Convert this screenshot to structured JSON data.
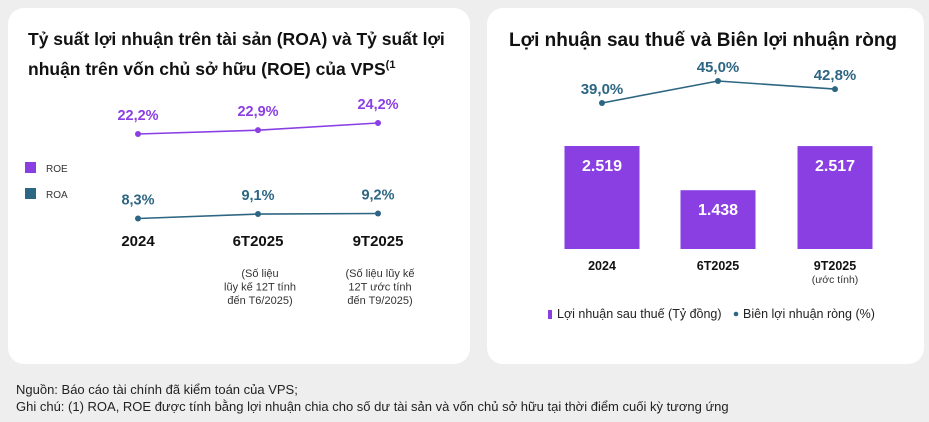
{
  "left_card": {
    "title_main": "Tỷ suất lợi nhuận trên tài sản (ROA) và Tỷ suất lợi nhuận trên vốn chủ sở hữu (ROE) của VPS",
    "title_sup": "(1"
  },
  "right_card": {
    "title": "Lợi nhuận sau thuế và Biên lợi nhuận ròng"
  },
  "footer": {
    "source": "Nguồn: Báo cáo tài chính đã kiểm toán của VPS;",
    "note": "Ghi chú: (1) ROA, ROE được tính bằng lợi nhuận chia cho số dư tài sản và vốn chủ sở hữu tại thời điểm cuối kỳ tương ứng"
  },
  "colors": {
    "roe": "#8a3fe3",
    "roa": "#2d6682",
    "bar": "#8a3fe3",
    "margin_line": "#2d6682",
    "text_dark": "#111111"
  },
  "chart_data": [
    {
      "type": "line",
      "categories": [
        "2024",
        "6T2025",
        "9T2025"
      ],
      "category_notes": [
        "",
        [
          "(Số liệu",
          "lũy kế 12T tính",
          "đến T6/2025)"
        ],
        [
          "(Số liệu lũy kế",
          "12T ước tính",
          "đến T9/2025)"
        ]
      ],
      "series": [
        {
          "name": "ROE",
          "values": [
            22.2,
            22.9,
            24.2
          ],
          "labels": [
            "22,2%",
            "22,9%",
            "24,2%"
          ],
          "color": "#8a3fe3"
        },
        {
          "name": "ROA",
          "values": [
            8.3,
            9.1,
            9.2
          ],
          "labels": [
            "8,3%",
            "9,1%",
            "9,2%"
          ],
          "color": "#2d6682"
        }
      ],
      "legend_position": "left",
      "grid": false
    },
    {
      "type": "bar",
      "categories": [
        "2024",
        "6T2025",
        "9T2025"
      ],
      "category_subs": [
        "",
        "",
        "(ước tính)"
      ],
      "series": [
        {
          "name": "Lợi nhuận sau thuế (Tỷ đồng)",
          "kind": "bar",
          "values": [
            2519,
            1438,
            2517
          ],
          "labels": [
            "2.519",
            "1.438",
            "2.517"
          ],
          "color": "#8a3fe3"
        },
        {
          "name": "Biên lợi nhuận ròng (%)",
          "kind": "line",
          "values": [
            39.0,
            45.0,
            42.8
          ],
          "labels": [
            "39,0%",
            "45,0%",
            "42,8%"
          ],
          "color": "#2d6682"
        }
      ],
      "legend_position": "bottom",
      "legend_text": [
        "Lợi nhuận sau thuế (Tỷ đồng)",
        "Biên lợi nhuận ròng (%)"
      ],
      "grid": false
    }
  ]
}
